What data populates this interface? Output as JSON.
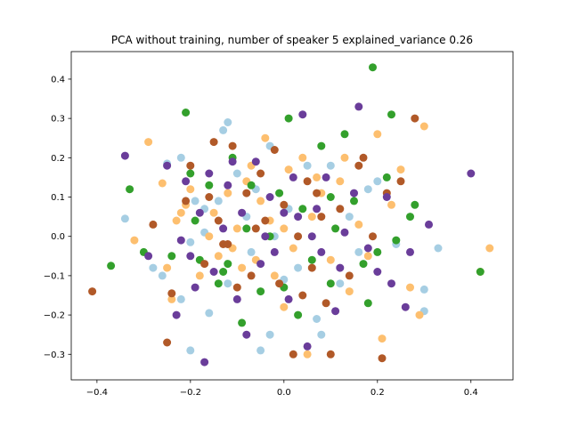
{
  "chart_data": {
    "type": "scatter",
    "title": "PCA without training, number of speaker 5  explained_variance 0.26",
    "xlabel": "",
    "ylabel": "",
    "xlim": [
      -0.455,
      0.49
    ],
    "ylim": [
      -0.365,
      0.47
    ],
    "xticks": [
      -0.4,
      -0.2,
      0.0,
      0.2,
      0.4
    ],
    "xtick_labels": [
      "−0.4",
      "−0.2",
      "0.0",
      "0.2",
      "0.4"
    ],
    "yticks": [
      -0.3,
      -0.2,
      -0.1,
      0.0,
      0.1,
      0.2,
      0.3,
      0.4
    ],
    "ytick_labels": [
      "−0.3",
      "−0.2",
      "−0.1",
      "0.0",
      "0.1",
      "0.2",
      "0.3",
      "0.4"
    ],
    "grid": false,
    "legend": "none",
    "series": [
      {
        "color": "#a6cee3",
        "points": [
          [
            -0.34,
            0.045
          ],
          [
            -0.25,
            0.185
          ],
          [
            -0.22,
            0.2
          ],
          [
            -0.2,
            -0.015
          ],
          [
            -0.2,
            -0.29
          ],
          [
            -0.19,
            0.09
          ],
          [
            -0.17,
            0.01
          ],
          [
            -0.16,
            -0.195
          ],
          [
            -0.14,
            0.09
          ],
          [
            -0.13,
            0.27
          ],
          [
            -0.12,
            0.29
          ],
          [
            -0.1,
            0.16
          ],
          [
            -0.08,
            0.05
          ],
          [
            -0.07,
            -0.04
          ],
          [
            -0.05,
            -0.29
          ],
          [
            -0.03,
            0.23
          ],
          [
            -0.02,
            0.0
          ],
          [
            0.0,
            -0.11
          ],
          [
            0.01,
            0.07
          ],
          [
            0.03,
            -0.08
          ],
          [
            0.05,
            0.18
          ],
          [
            0.07,
            -0.21
          ],
          [
            0.08,
            -0.25
          ],
          [
            0.1,
            0.18
          ],
          [
            0.12,
            -0.12
          ],
          [
            0.14,
            0.05
          ],
          [
            0.16,
            -0.04
          ],
          [
            0.2,
            0.14
          ],
          [
            0.24,
            -0.02
          ],
          [
            0.3,
            -0.135
          ],
          [
            0.33,
            -0.03
          ],
          [
            0.3,
            -0.19
          ],
          [
            -0.28,
            -0.08
          ],
          [
            -0.26,
            -0.1
          ],
          [
            -0.22,
            -0.16
          ],
          [
            -0.17,
            0.07
          ],
          [
            -0.12,
            -0.12
          ],
          [
            -0.03,
            -0.25
          ],
          [
            0.18,
            0.12
          ],
          [
            -0.06,
            0.12
          ]
        ]
      },
      {
        "color": "#fdbf6f",
        "points": [
          [
            -0.32,
            -0.01
          ],
          [
            -0.29,
            0.24
          ],
          [
            -0.26,
            0.135
          ],
          [
            -0.25,
            -0.08
          ],
          [
            -0.24,
            -0.16
          ],
          [
            -0.22,
            0.06
          ],
          [
            -0.21,
            0.08
          ],
          [
            -0.2,
            0.12
          ],
          [
            -0.18,
            -0.1
          ],
          [
            -0.16,
            0.0
          ],
          [
            -0.15,
            0.06
          ],
          [
            -0.12,
            0.11
          ],
          [
            -0.11,
            -0.03
          ],
          [
            -0.09,
            -0.08
          ],
          [
            -0.08,
            0.14
          ],
          [
            -0.07,
            0.18
          ],
          [
            -0.05,
            0.09
          ],
          [
            -0.04,
            0.25
          ],
          [
            -0.03,
            0.04
          ],
          [
            -0.02,
            -0.1
          ],
          [
            0.0,
            0.02
          ],
          [
            0.01,
            0.17
          ],
          [
            0.02,
            -0.03
          ],
          [
            0.04,
            0.2
          ],
          [
            0.05,
            -0.3
          ],
          [
            0.06,
            0.05
          ],
          [
            0.08,
            0.11
          ],
          [
            0.1,
            -0.06
          ],
          [
            0.12,
            0.14
          ],
          [
            0.14,
            -0.14
          ],
          [
            0.16,
            0.03
          ],
          [
            0.18,
            -0.05
          ],
          [
            0.2,
            0.26
          ],
          [
            0.21,
            -0.26
          ],
          [
            0.23,
            0.08
          ],
          [
            0.25,
            0.17
          ],
          [
            0.27,
            -0.13
          ],
          [
            0.3,
            0.28
          ],
          [
            0.42,
            -0.09
          ],
          [
            0.44,
            -0.03
          ],
          [
            -0.14,
            -0.05
          ],
          [
            -0.06,
            -0.06
          ],
          [
            0.13,
            0.2
          ],
          [
            0.29,
            -0.2
          ],
          [
            0.0,
            -0.18
          ],
          [
            -0.1,
            0.02
          ],
          [
            0.07,
            0.15
          ],
          [
            -0.23,
            0.04
          ]
        ]
      },
      {
        "color": "#33a02c",
        "points": [
          [
            -0.37,
            -0.075
          ],
          [
            -0.33,
            0.12
          ],
          [
            -0.3,
            -0.04
          ],
          [
            -0.21,
            0.315
          ],
          [
            -0.2,
            0.16
          ],
          [
            -0.19,
            0.04
          ],
          [
            -0.18,
            -0.06
          ],
          [
            -0.16,
            0.13
          ],
          [
            -0.14,
            -0.12
          ],
          [
            -0.12,
            -0.07
          ],
          [
            -0.11,
            0.2
          ],
          [
            -0.09,
            -0.22
          ],
          [
            -0.08,
            0.02
          ],
          [
            -0.07,
            0.13
          ],
          [
            -0.05,
            -0.14
          ],
          [
            -0.03,
            0.0
          ],
          [
            -0.01,
            0.11
          ],
          [
            0.01,
            0.3
          ],
          [
            0.03,
            -0.2
          ],
          [
            0.04,
            0.07
          ],
          [
            0.06,
            -0.06
          ],
          [
            0.08,
            0.23
          ],
          [
            0.1,
            -0.12
          ],
          [
            0.11,
            0.02
          ],
          [
            0.13,
            0.26
          ],
          [
            0.15,
            0.09
          ],
          [
            0.17,
            -0.07
          ],
          [
            0.19,
            0.43
          ],
          [
            0.2,
            -0.04
          ],
          [
            0.22,
            0.15
          ],
          [
            0.23,
            0.31
          ],
          [
            0.24,
            -0.01
          ],
          [
            0.27,
            0.05
          ],
          [
            0.28,
            0.08
          ],
          [
            0.42,
            -0.09
          ],
          [
            0.18,
            -0.17
          ],
          [
            -0.13,
            -0.09
          ],
          [
            0.0,
            -0.13
          ],
          [
            0.1,
            0.1
          ],
          [
            -0.24,
            -0.05
          ]
        ]
      },
      {
        "color": "#b15928",
        "points": [
          [
            -0.41,
            -0.14
          ],
          [
            -0.28,
            0.03
          ],
          [
            -0.25,
            -0.27
          ],
          [
            -0.24,
            -0.145
          ],
          [
            -0.21,
            0.09
          ],
          [
            -0.2,
            0.18
          ],
          [
            -0.17,
            -0.07
          ],
          [
            -0.15,
            0.24
          ],
          [
            -0.14,
            0.04
          ],
          [
            -0.13,
            -0.02
          ],
          [
            -0.11,
            0.23
          ],
          [
            -0.1,
            -0.13
          ],
          [
            -0.08,
            0.11
          ],
          [
            -0.07,
            -0.1
          ],
          [
            -0.06,
            0.02
          ],
          [
            -0.04,
            0.04
          ],
          [
            -0.02,
            0.22
          ],
          [
            -0.01,
            -0.12
          ],
          [
            0.0,
            0.08
          ],
          [
            0.02,
            -0.3
          ],
          [
            0.03,
            0.0
          ],
          [
            0.05,
            0.14
          ],
          [
            0.06,
            -0.08
          ],
          [
            0.07,
            0.11
          ],
          [
            0.09,
            -0.17
          ],
          [
            0.1,
            -0.3
          ],
          [
            0.12,
            0.07
          ],
          [
            0.14,
            -0.1
          ],
          [
            0.16,
            0.18
          ],
          [
            0.17,
            0.2
          ],
          [
            0.19,
            0.0
          ],
          [
            0.21,
            -0.31
          ],
          [
            0.22,
            0.11
          ],
          [
            0.25,
            0.14
          ],
          [
            0.28,
            0.3
          ],
          [
            -0.05,
            0.16
          ],
          [
            0.04,
            -0.15
          ],
          [
            -0.12,
            -0.02
          ],
          [
            0.08,
            0.05
          ],
          [
            -0.16,
            0.1
          ]
        ]
      },
      {
        "color": "#6a3d9a",
        "points": [
          [
            -0.34,
            0.205
          ],
          [
            -0.29,
            -0.05
          ],
          [
            -0.25,
            0.18
          ],
          [
            -0.23,
            -0.2
          ],
          [
            -0.22,
            -0.01
          ],
          [
            -0.21,
            0.14
          ],
          [
            -0.19,
            -0.13
          ],
          [
            -0.17,
            -0.32
          ],
          [
            -0.16,
            0.16
          ],
          [
            -0.15,
            -0.09
          ],
          [
            -0.13,
            0.02
          ],
          [
            -0.12,
            0.13
          ],
          [
            -0.1,
            -0.16
          ],
          [
            -0.09,
            0.06
          ],
          [
            -0.08,
            -0.25
          ],
          [
            -0.06,
            0.19
          ],
          [
            -0.05,
            -0.07
          ],
          [
            -0.03,
            0.1
          ],
          [
            -0.02,
            -0.04
          ],
          [
            0.0,
            0.06
          ],
          [
            0.01,
            -0.16
          ],
          [
            0.03,
            0.05
          ],
          [
            0.04,
            0.31
          ],
          [
            0.05,
            -0.28
          ],
          [
            0.06,
            0.0
          ],
          [
            0.08,
            -0.04
          ],
          [
            0.09,
            0.15
          ],
          [
            0.11,
            -0.19
          ],
          [
            0.13,
            0.01
          ],
          [
            0.15,
            0.11
          ],
          [
            0.16,
            0.33
          ],
          [
            0.18,
            -0.03
          ],
          [
            0.2,
            -0.09
          ],
          [
            0.22,
            0.1
          ],
          [
            0.23,
            -0.12
          ],
          [
            0.26,
            -0.18
          ],
          [
            0.27,
            -0.04
          ],
          [
            0.31,
            0.03
          ],
          [
            0.4,
            0.16
          ],
          [
            -0.2,
            -0.05
          ],
          [
            0.07,
            0.07
          ],
          [
            -0.04,
            0.0
          ],
          [
            0.12,
            -0.08
          ],
          [
            -0.11,
            0.19
          ],
          [
            0.02,
            0.15
          ],
          [
            -0.18,
            0.06
          ]
        ]
      }
    ]
  }
}
